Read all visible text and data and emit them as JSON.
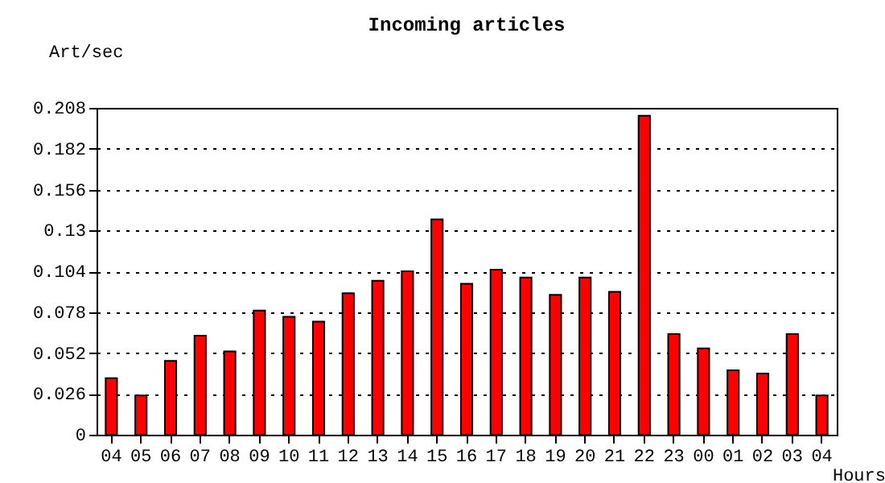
{
  "chart_data": {
    "type": "bar",
    "title": "Incoming articles",
    "xlabel": "Hours",
    "ylabel": "Art/sec",
    "categories": [
      "04",
      "05",
      "06",
      "07",
      "08",
      "09",
      "10",
      "11",
      "12",
      "13",
      "14",
      "15",
      "16",
      "17",
      "18",
      "19",
      "20",
      "21",
      "22",
      "23",
      "00",
      "01",
      "02",
      "03",
      "04"
    ],
    "values": [
      0.036,
      0.025,
      0.047,
      0.063,
      0.053,
      0.079,
      0.075,
      0.072,
      0.09,
      0.098,
      0.104,
      0.137,
      0.096,
      0.105,
      0.1,
      0.089,
      0.1,
      0.091,
      0.203,
      0.064,
      0.055,
      0.041,
      0.039,
      0.064,
      0.025
    ],
    "color": "#ff0000",
    "ylim": [
      0,
      0.208
    ],
    "yticks": [
      0,
      0.026,
      0.052,
      0.078,
      0.104,
      0.13,
      0.156,
      0.182,
      0.208
    ],
    "grid": "y"
  }
}
